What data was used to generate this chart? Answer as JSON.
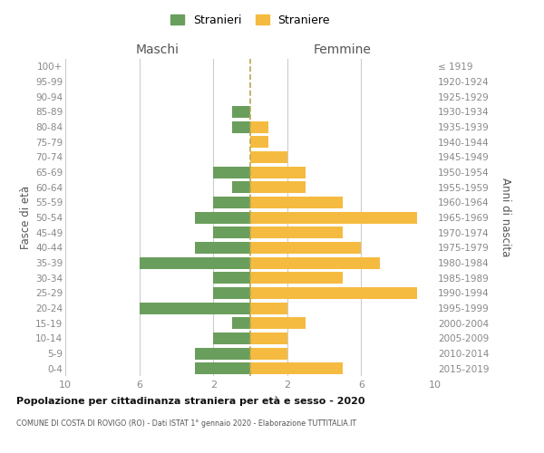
{
  "age_groups": [
    "0-4",
    "5-9",
    "10-14",
    "15-19",
    "20-24",
    "25-29",
    "30-34",
    "35-39",
    "40-44",
    "45-49",
    "50-54",
    "55-59",
    "60-64",
    "65-69",
    "70-74",
    "75-79",
    "80-84",
    "85-89",
    "90-94",
    "95-99",
    "100+"
  ],
  "birth_years": [
    "2015-2019",
    "2010-2014",
    "2005-2009",
    "2000-2004",
    "1995-1999",
    "1990-1994",
    "1985-1989",
    "1980-1984",
    "1975-1979",
    "1970-1974",
    "1965-1969",
    "1960-1964",
    "1955-1959",
    "1950-1954",
    "1945-1949",
    "1940-1944",
    "1935-1939",
    "1930-1934",
    "1925-1929",
    "1920-1924",
    "≤ 1919"
  ],
  "maschi": [
    3,
    3,
    2,
    1,
    6,
    2,
    2,
    6,
    3,
    2,
    3,
    2,
    1,
    2,
    0,
    0,
    1,
    1,
    0,
    0,
    0
  ],
  "femmine": [
    5,
    2,
    2,
    3,
    2,
    9,
    5,
    7,
    6,
    5,
    9,
    5,
    3,
    3,
    2,
    1,
    1,
    0,
    0,
    0,
    0
  ],
  "color_maschi": "#6a9e5c",
  "color_femmine": "#f5bb40",
  "title_main": "Popolazione per cittadinanza straniera per età e sesso - 2020",
  "title_sub": "COMUNE DI COSTA DI ROVIGO (RO) - Dati ISTAT 1° gennaio 2020 - Elaborazione TUTTITALIA.IT",
  "xlabel_left": "Maschi",
  "xlabel_right": "Femmine",
  "ylabel_left": "Fasce di età",
  "ylabel_right": "Anni di nascita",
  "legend_maschi": "Stranieri",
  "legend_femmine": "Straniere",
  "xlim": 10,
  "background_color": "#ffffff",
  "grid_color": "#cccccc",
  "dashed_line_color": "#b8a850"
}
